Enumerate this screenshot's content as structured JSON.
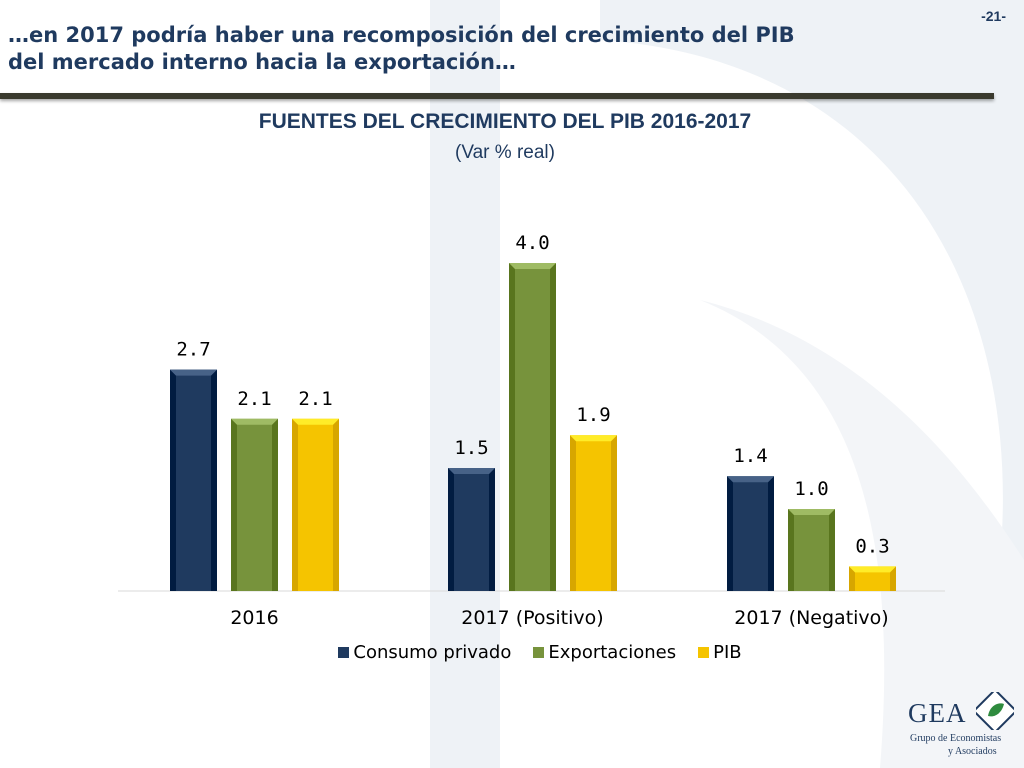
{
  "page_number": "-21-",
  "slide_title_line1": "…en 2017 podría haber una recomposición del crecimiento del PIB",
  "slide_title_line2": "del mercado interno hacia la exportación…",
  "logo": {
    "name": "GEA",
    "subtitle_line1": "Grupo de Economistas",
    "subtitle_line2": "y Asociados"
  },
  "chart_data": {
    "type": "bar",
    "title": "FUENTES DEL CRECIMIENTO DEL PIB 2016-2017",
    "subtitle": "(Var % real)",
    "categories": [
      "2016",
      "2017 (Positivo)",
      "2017 (Negativo)"
    ],
    "series": [
      {
        "name": "Consumo privado",
        "values": [
          2.7,
          1.5,
          1.4
        ],
        "color": "#1f3a5f"
      },
      {
        "name": "Exportaciones",
        "values": [
          2.1,
          4.0,
          1.0
        ],
        "color": "#77933c"
      },
      {
        "name": "PIB",
        "values": [
          2.1,
          1.9,
          0.3
        ],
        "color": "#f5c400"
      }
    ],
    "value_labels": [
      [
        "2.7",
        "1.5",
        "1.4"
      ],
      [
        "2.1",
        "4.0",
        "1.0"
      ],
      [
        "2.1",
        "1.9",
        "0.3"
      ]
    ],
    "ylim": [
      0,
      4.0
    ],
    "legend_position": "bottom",
    "grid": false
  }
}
